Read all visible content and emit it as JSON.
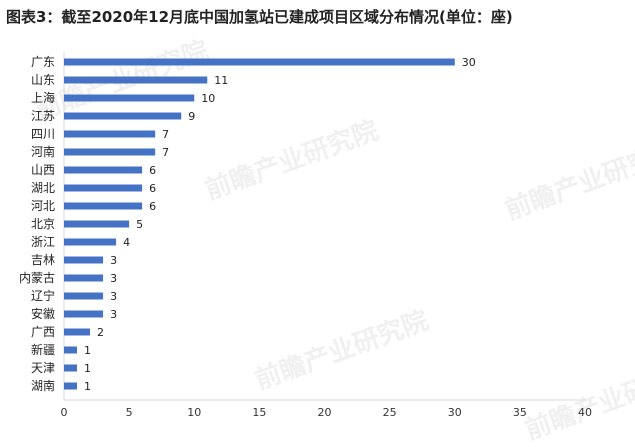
{
  "title": "图表3：截至2020年12月底中国加氢站已建成项目区域分布情况(单位：座)",
  "watermark": "前瞻产业研究院",
  "chart_data": {
    "type": "bar",
    "orientation": "horizontal",
    "categories": [
      "广东",
      "山东",
      "上海",
      "江苏",
      "四川",
      "河南",
      "山西",
      "湖北",
      "河北",
      "北京",
      "浙江",
      "吉林",
      "内蒙古",
      "辽宁",
      "安徽",
      "广西",
      "新疆",
      "天津",
      "湖南"
    ],
    "values": [
      30,
      11,
      10,
      9,
      7,
      7,
      6,
      6,
      6,
      5,
      4,
      3,
      3,
      3,
      3,
      2,
      1,
      1,
      1
    ],
    "xlim": [
      0,
      40
    ],
    "xticks": [
      0,
      5,
      10,
      15,
      20,
      25,
      30,
      35,
      40
    ],
    "bar_color": "#4472C4",
    "grid": false,
    "data_labels": true,
    "xlabel": "",
    "ylabel": ""
  }
}
